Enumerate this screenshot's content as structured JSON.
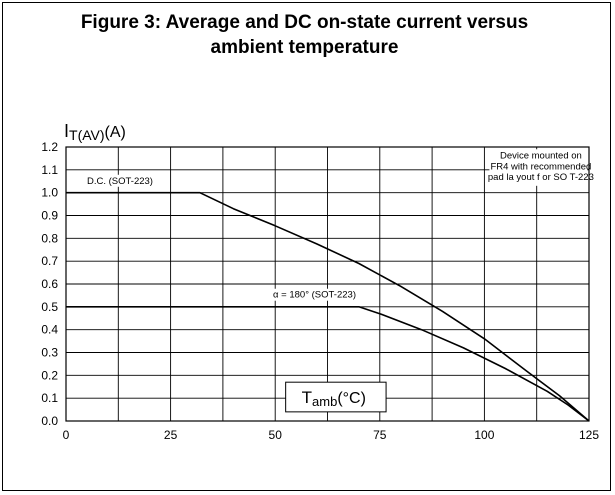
{
  "title_line1": "Figure 3: Average and DC on-state current versus",
  "title_line2": "ambient temperature",
  "chart_data": {
    "type": "line",
    "title": "Figure 3: Average and DC on-state current versus ambient temperature",
    "ylabel_main": "I",
    "ylabel_sub": "T(AV)",
    "ylabel_unit": "(A)",
    "xlabel_main": "T",
    "xlabel_sub": "amb",
    "xlabel_unit": "(°C)",
    "xlim": [
      0,
      125
    ],
    "ylim": [
      0,
      1.2
    ],
    "x_ticks": [
      0,
      25,
      50,
      75,
      100,
      125
    ],
    "x_tick_labels": [
      "0",
      "25",
      "50",
      "75",
      "100",
      "125"
    ],
    "y_ticks": [
      0.0,
      0.1,
      0.2,
      0.3,
      0.4,
      0.5,
      0.6,
      0.7,
      0.8,
      0.9,
      1.0,
      1.1,
      1.2
    ],
    "y_tick_labels": [
      "0.0",
      "0.1",
      "0.2",
      "0.3",
      "0.4",
      "0.5",
      "0.6",
      "0.7",
      "0.8",
      "0.9",
      "1.0",
      "1.1",
      "1.2"
    ],
    "x_grid_step": 12.5,
    "grid": true,
    "series": [
      {
        "name": "D.C. (SOT-223)",
        "x": [
          0,
          32,
          40,
          50,
          60,
          70,
          80,
          90,
          100,
          110,
          118,
          125
        ],
        "y": [
          1.0,
          1.0,
          0.93,
          0.855,
          0.775,
          0.69,
          0.59,
          0.48,
          0.36,
          0.22,
          0.11,
          0.0
        ]
      },
      {
        "name": "α = 180° (SOT-223)",
        "x": [
          0,
          70,
          75,
          85,
          95,
          105,
          115,
          120,
          125
        ],
        "y": [
          0.5,
          0.5,
          0.47,
          0.4,
          0.32,
          0.23,
          0.13,
          0.07,
          0.0
        ]
      }
    ],
    "annotation": [
      "Device mounted on",
      "FR4 with recommended",
      "pad la yout f or SO T-223"
    ]
  }
}
